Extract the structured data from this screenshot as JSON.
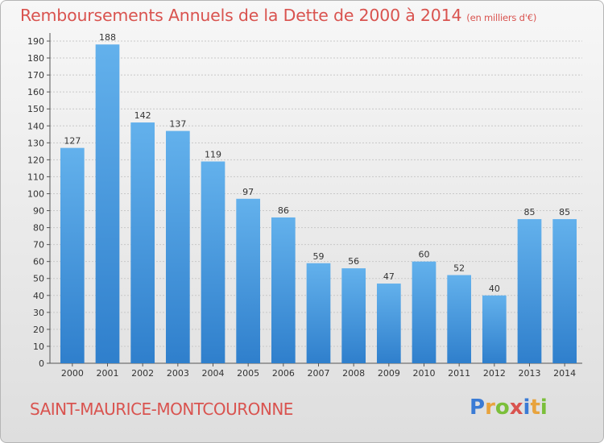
{
  "header": {
    "title": "Remboursements Annuels de la Dette de 2000 à 2014",
    "unit": "(en milliers d'€)"
  },
  "footer": {
    "commune": "SAINT-MAURICE-MONTCOURONNE",
    "logo_letters": [
      "P",
      "r",
      "o",
      "x",
      "i",
      "t",
      "i"
    ],
    "logo_colors": [
      "#3a7bd5",
      "#e8a33d",
      "#7bbf3a",
      "#d9534f",
      "#3a7bd5",
      "#e8a33d",
      "#7bbf3a"
    ]
  },
  "colors": {
    "accent": "#d9534f",
    "bar_top": "#63b1ec",
    "bar_bottom": "#2f7fcc"
  },
  "chart_data": {
    "type": "bar",
    "title": "Remboursements Annuels de la Dette de 2000 à 2014",
    "categories": [
      "2000",
      "2001",
      "2002",
      "2003",
      "2004",
      "2005",
      "2006",
      "2007",
      "2008",
      "2009",
      "2010",
      "2011",
      "2012",
      "2013",
      "2014"
    ],
    "values": [
      127,
      188,
      142,
      137,
      119,
      97,
      86,
      59,
      56,
      47,
      60,
      52,
      40,
      85,
      85
    ],
    "ylim": [
      0,
      190
    ],
    "yticks": [
      0,
      10,
      20,
      30,
      40,
      50,
      60,
      70,
      80,
      90,
      100,
      110,
      120,
      130,
      140,
      150,
      160,
      170,
      180,
      190
    ],
    "grid": true
  }
}
